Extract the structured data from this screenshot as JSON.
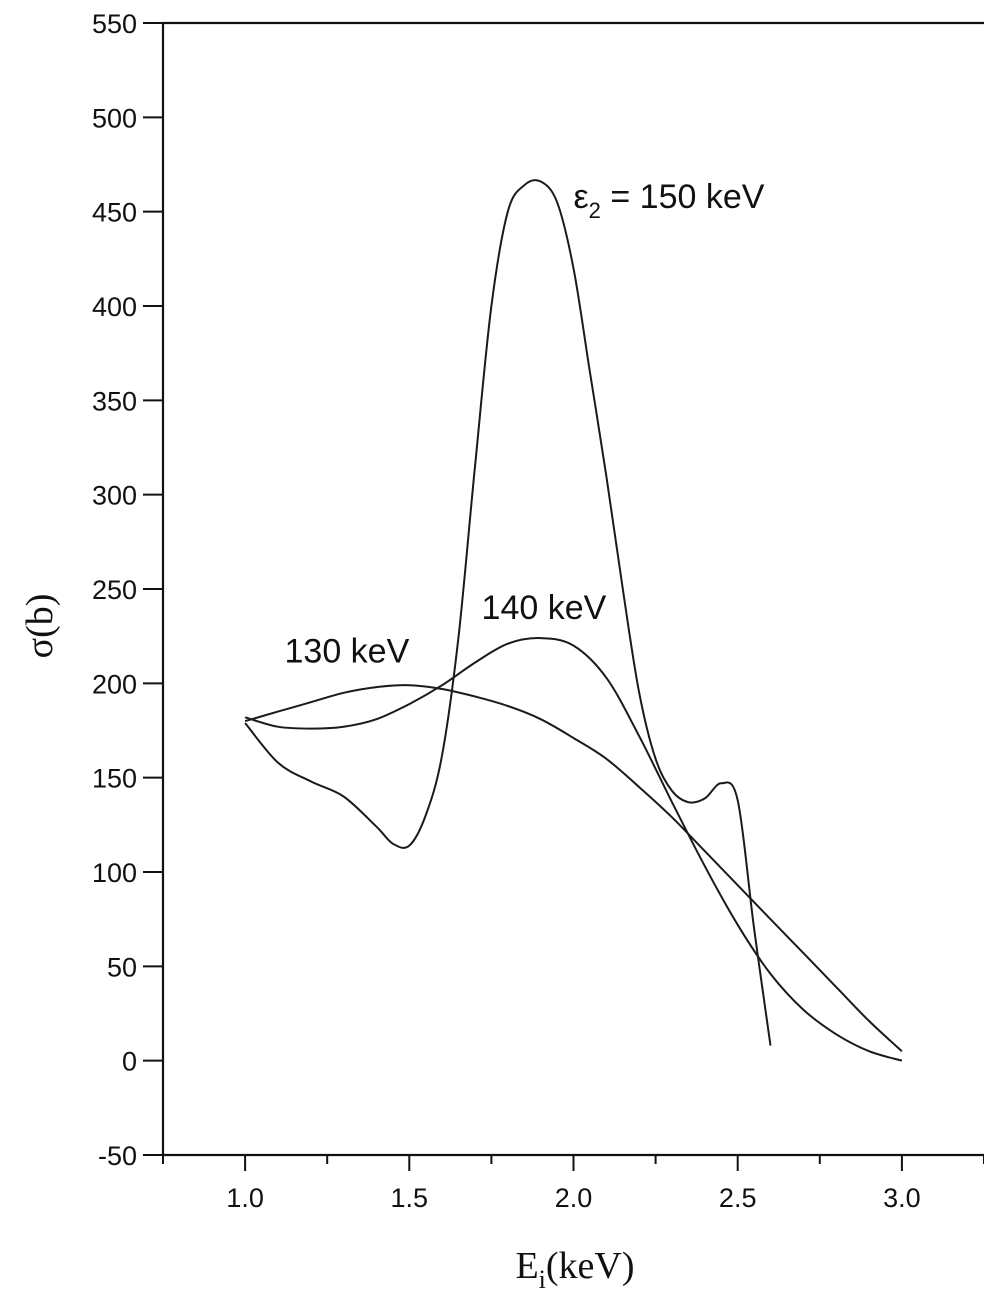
{
  "chart_data": {
    "type": "line",
    "title": "",
    "xlabel": {
      "main": "E",
      "sub": "i",
      "rest": "(keV)"
    },
    "ylabel": "σ(b)",
    "xlim": [
      0.75,
      3.25
    ],
    "ylim": [
      -50,
      550
    ],
    "x_ticks": [
      1.0,
      1.5,
      2.0,
      2.5,
      3.0
    ],
    "x_tick_labels": [
      "1.0",
      "1.5",
      "2.0",
      "2.5",
      "3.0"
    ],
    "x_minor_ticks": [
      0.75,
      1.25,
      1.75,
      2.25,
      2.75,
      3.25
    ],
    "y_ticks": [
      -50,
      0,
      50,
      100,
      150,
      200,
      250,
      300,
      350,
      400,
      450,
      500,
      550
    ],
    "y_tick_labels": [
      "-50",
      "0",
      "50",
      "100",
      "150",
      "200",
      "250",
      "300",
      "350",
      "400",
      "450",
      "500",
      "550"
    ],
    "y_minor_step": 25,
    "grid": false,
    "series": [
      {
        "x": [
          1.0,
          1.1,
          1.2,
          1.3,
          1.4,
          1.5,
          1.6,
          1.7,
          1.8,
          1.9,
          2.0,
          2.1,
          2.2,
          2.3,
          2.4,
          2.5,
          2.6,
          2.7,
          2.8,
          2.9,
          3.0
        ],
        "y": [
          180,
          185,
          190,
          195,
          198,
          199,
          197,
          193,
          188,
          181,
          171,
          160,
          145,
          129,
          111,
          93,
          75,
          57,
          39,
          21,
          5
        ]
      },
      {
        "x": [
          1.0,
          1.1,
          1.2,
          1.3,
          1.4,
          1.5,
          1.6,
          1.7,
          1.8,
          1.9,
          2.0,
          2.1,
          2.2,
          2.3,
          2.4,
          2.5,
          2.6,
          2.7,
          2.8,
          2.9,
          3.0
        ],
        "y": [
          182,
          177,
          176,
          177,
          181,
          189,
          199,
          211,
          221,
          224,
          220,
          203,
          172,
          137,
          103,
          72,
          46,
          27,
          14,
          5,
          0
        ]
      },
      {
        "x": [
          1.0,
          1.1,
          1.2,
          1.3,
          1.4,
          1.45,
          1.5,
          1.55,
          1.6,
          1.65,
          1.7,
          1.75,
          1.8,
          1.85,
          1.9,
          1.95,
          2.0,
          2.05,
          2.1,
          2.15,
          2.2,
          2.25,
          2.3,
          2.35,
          2.4,
          2.45,
          2.5,
          2.55,
          2.6
        ],
        "y": [
          179,
          158,
          148,
          140,
          124,
          115,
          114,
          130,
          162,
          225,
          315,
          400,
          450,
          464,
          466,
          455,
          420,
          365,
          310,
          250,
          195,
          160,
          143,
          137,
          139,
          147,
          138,
          70,
          8
        ]
      }
    ],
    "annotations": [
      {
        "symbol": "ε",
        "sub": "2",
        "text": " = 150 keV",
        "x": 2.0,
        "y": 452
      },
      {
        "text": "140 keV",
        "x": 1.72,
        "y": 234
      },
      {
        "text": "130 keV",
        "x": 1.12,
        "y": 211
      }
    ]
  }
}
